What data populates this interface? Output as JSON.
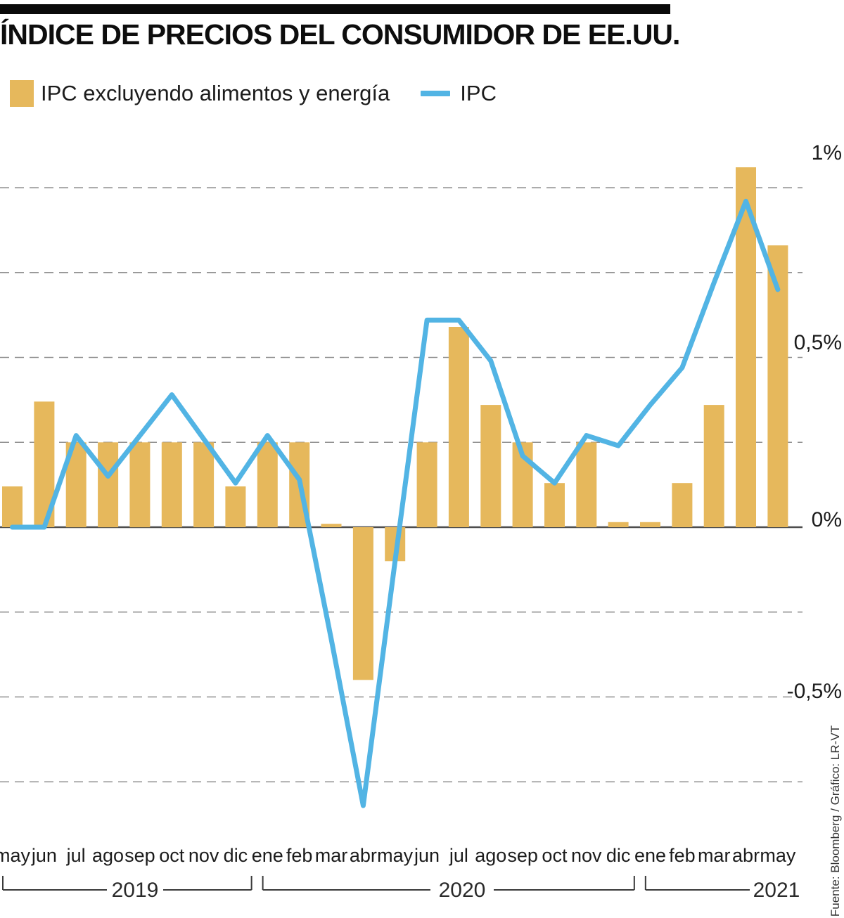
{
  "header": {
    "title": "ÍNDICE DE PRECIOS DEL CONSUMIDOR DE EE.UU."
  },
  "legend": {
    "bars_label": "IPC excluyendo alimentos y energía",
    "line_label": "IPC"
  },
  "source": "Fuente: Bloomberg / Gráfico: LR-VT",
  "colors": {
    "bars": "#E6B85C",
    "line": "#52B4E4",
    "grid": "#909090",
    "axis": "#4D4D4D",
    "bracket": "#3A3A3A",
    "topbar": "#0A0A0A"
  },
  "chart_data": {
    "type": "bar+line",
    "categories": [
      "may",
      "jun",
      "jul",
      "ago",
      "sep",
      "oct",
      "nov",
      "dic",
      "ene",
      "feb",
      "mar",
      "abr",
      "may",
      "jun",
      "jul",
      "ago",
      "sep",
      "oct",
      "nov",
      "dic",
      "ene",
      "feb",
      "mar",
      "abr",
      "may"
    ],
    "year_groups": [
      {
        "label": "2019",
        "from": 0,
        "to": 7
      },
      {
        "label": "2020",
        "from": 8,
        "to": 19
      },
      {
        "label": "2021",
        "from": 20,
        "to": 24
      }
    ],
    "series": [
      {
        "name": "IPC excluyendo alimentos y energía",
        "type": "bar",
        "values": [
          0.12,
          0.37,
          0.25,
          0.25,
          0.25,
          0.25,
          0.25,
          0.12,
          0.25,
          0.25,
          0.01,
          -0.45,
          -0.1,
          0.25,
          0.59,
          0.36,
          0.25,
          0.13,
          0.25,
          0.015,
          0.015,
          0.13,
          0.36,
          1.06,
          0.83
        ]
      },
      {
        "name": "IPC",
        "type": "line",
        "values": [
          0.0,
          0.0,
          0.27,
          0.15,
          0.27,
          0.39,
          0.26,
          0.13,
          0.27,
          0.14,
          -0.33,
          -0.82,
          -0.1,
          0.61,
          0.61,
          0.49,
          0.21,
          0.13,
          0.27,
          0.24,
          0.36,
          0.47,
          0.72,
          0.96,
          0.7
        ]
      }
    ],
    "y_axis": {
      "unit": "%",
      "ticks": [
        {
          "value": 1,
          "label": "1%"
        },
        {
          "value": 0.5,
          "label": "0,5%"
        },
        {
          "value": 0,
          "label": "0%"
        },
        {
          "value": -0.5,
          "label": "-0,5%"
        }
      ],
      "gridline_step": 0.25,
      "ylim": [
        -0.9,
        1.1
      ],
      "grid": "dashed"
    }
  }
}
